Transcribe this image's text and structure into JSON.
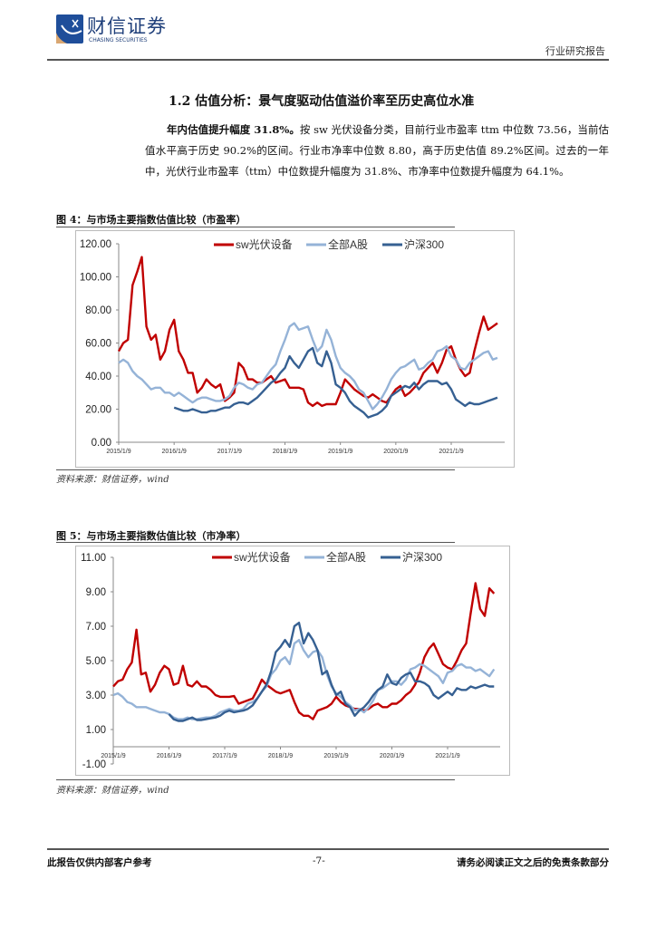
{
  "header": {
    "logo_cn": "财信证券",
    "logo_en": "CHASING SECURITIES",
    "doc_type": "行业研究报告"
  },
  "section": {
    "title": "1.2 估值分析：景气度驱动估值溢价率至历史高位水准",
    "para_bold": "年内估值提升幅度 31.8%。",
    "para_text": "按 sw 光伏设备分类，目前行业市盈率 ttm 中位数 73.56，当前估值水平高于历史 90.2%的区间。行业市净率中位数 8.80，高于历史估值 89.2%区间。过去的一年中，光伏行业市盈率（ttm）中位数提升幅度为 31.8%、市净率中位数提升幅度为 64.1%。"
  },
  "figures": [
    {
      "title": "图 4：与市场主要指数估值比较（市盈率）",
      "source": "资料来源：财信证券，wind"
    },
    {
      "title": "图 5：与市场主要指数估值比较（市净率）",
      "source": "资料来源：财信证券，wind"
    }
  ],
  "footer": {
    "left": "此报告仅供内部客户参考",
    "page": "-7-",
    "right": "请务必阅读正文之后的免责条款部分"
  },
  "chart_data": [
    {
      "type": "line",
      "title": "",
      "xlabel": "",
      "ylabel": "",
      "ylim": [
        0,
        120
      ],
      "yticks": [
        "0.00",
        "20.00",
        "40.00",
        "60.00",
        "80.00",
        "100.00",
        "120.00"
      ],
      "xticks": [
        "2015/1/9",
        "2016/1/9",
        "2017/1/9",
        "2018/1/9",
        "2019/1/9",
        "2020/1/9",
        "2021/1/9"
      ],
      "x_start": "2015-01",
      "x_frequency": "monthly",
      "legend": "top-center",
      "grid": false,
      "series": [
        {
          "name": "sw光伏设备",
          "color": "#c00000",
          "values": [
            55,
            60,
            62,
            95,
            103,
            112,
            70,
            62,
            65,
            50,
            55,
            68,
            74,
            55,
            50,
            42,
            42,
            30,
            33,
            38,
            35,
            33,
            35,
            25,
            27,
            30,
            48,
            45,
            38,
            38,
            36,
            36,
            38,
            40,
            36,
            37,
            38,
            33,
            33,
            33,
            32,
            24,
            22,
            24,
            22,
            23,
            23,
            23,
            30,
            38,
            35,
            32,
            30,
            28,
            27,
            29,
            27,
            25,
            24,
            28,
            32,
            34,
            28,
            30,
            33,
            36,
            42,
            45,
            48,
            42,
            48,
            56,
            58,
            50,
            44,
            40,
            42,
            55,
            66,
            76,
            68,
            70,
            72
          ]
        },
        {
          "name": "全部A股",
          "color": "#95b3d7",
          "values": [
            48,
            50,
            48,
            43,
            40,
            38,
            35,
            32,
            33,
            33,
            30,
            30,
            28,
            30,
            28,
            26,
            24,
            26,
            27,
            27,
            26,
            25,
            25,
            26,
            28,
            33,
            36,
            35,
            33,
            32,
            35,
            36,
            40,
            44,
            47,
            55,
            62,
            70,
            72,
            68,
            69,
            70,
            62,
            55,
            58,
            68,
            62,
            52,
            45,
            42,
            40,
            37,
            32,
            30,
            25,
            20,
            23,
            27,
            32,
            38,
            42,
            45,
            46,
            48,
            50,
            44,
            45,
            48,
            50,
            55,
            56,
            58,
            52,
            50,
            45,
            44,
            48,
            50,
            52,
            54,
            55,
            50,
            51
          ]
        },
        {
          "name": "沪深300",
          "color": "#366092",
          "values": [
            null,
            null,
            null,
            null,
            null,
            null,
            null,
            null,
            null,
            null,
            null,
            null,
            21,
            20,
            19,
            19,
            20,
            19,
            18,
            18,
            19,
            19,
            20,
            21,
            21,
            23,
            24,
            24,
            23,
            25,
            27,
            30,
            33,
            36,
            38,
            42,
            45,
            52,
            48,
            45,
            50,
            55,
            57,
            48,
            46,
            55,
            48,
            35,
            33,
            30,
            25,
            22,
            20,
            18,
            15,
            16,
            17,
            19,
            22,
            28,
            30,
            32,
            34,
            33,
            36,
            32,
            35,
            37,
            37,
            37,
            35,
            36,
            32,
            26,
            24,
            22,
            24,
            23,
            23,
            24,
            25,
            26,
            27
          ]
        }
      ]
    },
    {
      "type": "line",
      "title": "",
      "xlabel": "",
      "ylabel": "",
      "ylim": [
        -1,
        11
      ],
      "yticks": [
        "-1.00",
        "1.00",
        "3.00",
        "5.00",
        "7.00",
        "9.00",
        "11.00"
      ],
      "xticks": [
        "2015/1/9",
        "2016/1/9",
        "2017/1/9",
        "2018/1/9",
        "2019/1/9",
        "2020/1/9",
        "2021/1/9"
      ],
      "x_start": "2015-01",
      "x_frequency": "monthly",
      "legend": "top-center",
      "grid": false,
      "series": [
        {
          "name": "sw光伏设备",
          "color": "#c00000",
          "values": [
            3.5,
            3.8,
            3.9,
            4.5,
            4.9,
            6.8,
            4.2,
            4.3,
            3.2,
            3.6,
            4.3,
            4.7,
            4.5,
            3.6,
            3.7,
            4.7,
            3.6,
            3.5,
            3.8,
            3.5,
            3.5,
            3.3,
            3.0,
            2.9,
            2.9,
            2.9,
            2.95,
            2.5,
            2.6,
            2.7,
            2.8,
            3.3,
            3.9,
            3.6,
            3.4,
            3.2,
            3.1,
            3.2,
            3.3,
            2.6,
            2.0,
            1.8,
            1.8,
            1.6,
            2.1,
            2.2,
            2.3,
            2.5,
            2.9,
            2.6,
            2.4,
            2.3,
            2.2,
            2.2,
            2.1,
            2.2,
            2.4,
            2.5,
            2.3,
            2.3,
            2.5,
            2.5,
            2.7,
            3.0,
            3.2,
            3.6,
            4.3,
            5.2,
            5.7,
            6.0,
            5.4,
            4.8,
            4.6,
            4.5,
            5.0,
            5.6,
            6.0,
            7.8,
            9.5,
            8.0,
            7.6,
            9.2,
            8.9
          ]
        },
        {
          "name": "全部A股",
          "color": "#95b3d7",
          "values": [
            3.0,
            3.1,
            2.9,
            2.6,
            2.5,
            2.3,
            2.3,
            2.3,
            2.2,
            2.1,
            2.0,
            2.0,
            1.9,
            1.7,
            1.6,
            1.6,
            1.7,
            1.6,
            1.6,
            1.65,
            1.7,
            1.7,
            1.8,
            2.0,
            2.1,
            2.2,
            2.1,
            2.1,
            2.2,
            2.5,
            2.6,
            2.8,
            3.2,
            3.5,
            4.2,
            4.5,
            5.0,
            5.2,
            4.8,
            6.0,
            6.2,
            5.6,
            5.2,
            5.5,
            5.6,
            5.2,
            4.2,
            3.5,
            3.1,
            2.9,
            2.6,
            2.4,
            2.1,
            2.2,
            2.0,
            2.3,
            2.7,
            3.3,
            3.4,
            3.6,
            3.8,
            3.8,
            3.6,
            3.9,
            4.5,
            4.6,
            4.8,
            4.7,
            4.5,
            4.3,
            4.1,
            3.7,
            4.3,
            4.4,
            4.7,
            4.8,
            4.6,
            4.6,
            4.4,
            4.5,
            4.3,
            4.1,
            4.5
          ]
        },
        {
          "name": "沪深300",
          "color": "#366092",
          "values": [
            null,
            null,
            null,
            null,
            null,
            null,
            null,
            null,
            null,
            null,
            null,
            null,
            1.9,
            1.6,
            1.5,
            1.5,
            1.6,
            1.7,
            1.55,
            1.55,
            1.6,
            1.65,
            1.7,
            1.8,
            2.0,
            2.1,
            2.0,
            2.05,
            2.1,
            2.2,
            2.4,
            2.8,
            3.2,
            3.6,
            4.4,
            5.5,
            5.8,
            6.2,
            5.8,
            7.0,
            7.2,
            6.0,
            6.6,
            6.2,
            5.6,
            4.2,
            4.4,
            3.6,
            3.0,
            3.2,
            2.5,
            2.3,
            1.8,
            2.1,
            2.3,
            2.6,
            3.0,
            3.3,
            3.5,
            4.2,
            3.7,
            3.6,
            4.0,
            4.2,
            4.3,
            3.8,
            3.8,
            3.7,
            3.5,
            3.0,
            2.8,
            3.0,
            3.2,
            3.0,
            3.4,
            3.3,
            3.3,
            3.5,
            3.4,
            3.5,
            3.6,
            3.5,
            3.5
          ]
        }
      ]
    }
  ]
}
